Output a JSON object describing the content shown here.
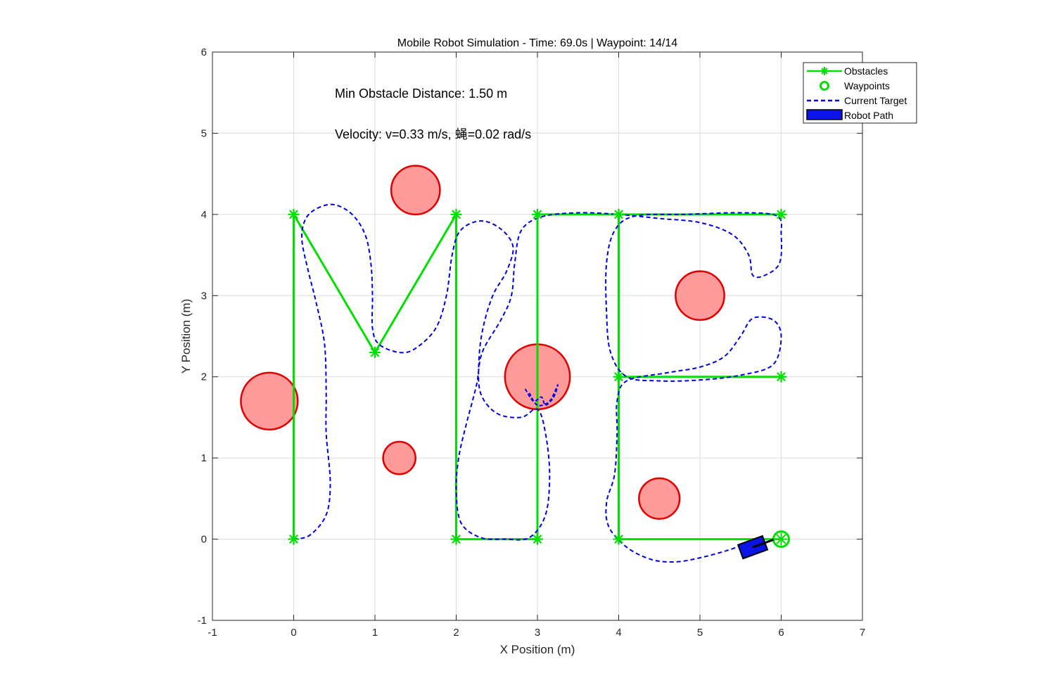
{
  "chart_data": {
    "type": "line",
    "title": "Mobile Robot Simulation - Time: 69.0s | Waypoint: 14/14",
    "xlabel": "X Position (m)",
    "ylabel": "Y Position (m)",
    "xlim": [
      -1,
      7
    ],
    "ylim": [
      -1,
      6
    ],
    "xticks": [
      "-1",
      "0",
      "1",
      "2",
      "3",
      "4",
      "5",
      "6",
      "7"
    ],
    "yticks": [
      "-1",
      "0",
      "1",
      "2",
      "3",
      "4",
      "5",
      "6"
    ],
    "grid": true,
    "legend_position": "top-right",
    "annotations": {
      "min_distance": "Min Obstacle Distance: 1.50 m",
      "velocity": "Velocity: v=0.33 m/s, 蝇=0.02 rad/s"
    },
    "legend": [
      {
        "label": "Obstacles",
        "style": "green-line-star"
      },
      {
        "label": "Waypoints",
        "style": "green-circle"
      },
      {
        "label": "Current Target",
        "style": "blue-dashed"
      },
      {
        "label": "Robot Path",
        "style": "blue-box"
      }
    ],
    "colors": {
      "waypoint_line": "#00e000",
      "path": "#0000e0",
      "obstacle_fill": "#ff9a9a",
      "obstacle_edge": "#e00000",
      "robot_fill": "#0a14e6"
    },
    "obstacles": [
      {
        "x": -0.3,
        "y": 1.7,
        "r": 0.35
      },
      {
        "x": 1.3,
        "y": 1.0,
        "r": 0.2
      },
      {
        "x": 1.5,
        "y": 4.3,
        "r": 0.3
      },
      {
        "x": 3.0,
        "y": 2.0,
        "r": 0.4
      },
      {
        "x": 5.0,
        "y": 3.0,
        "r": 0.3
      },
      {
        "x": 4.5,
        "y": 0.5,
        "r": 0.25
      }
    ],
    "waypoint_segments": [
      [
        [
          0,
          0
        ],
        [
          0,
          4
        ],
        [
          1,
          2.3
        ],
        [
          2,
          4
        ],
        [
          2,
          0
        ],
        [
          3,
          0
        ],
        [
          3,
          4
        ],
        [
          4,
          4
        ],
        [
          6,
          4
        ]
      ],
      [
        [
          4,
          4
        ],
        [
          4,
          2
        ],
        [
          6,
          2
        ]
      ],
      [
        [
          4,
          2
        ],
        [
          4,
          0
        ],
        [
          6,
          0
        ]
      ]
    ],
    "waypoint_stars": [
      [
        0,
        0
      ],
      [
        0,
        4
      ],
      [
        1,
        2.3
      ],
      [
        2,
        4
      ],
      [
        2,
        0
      ],
      [
        3,
        0
      ],
      [
        3,
        4
      ],
      [
        4,
        4
      ],
      [
        6,
        4
      ],
      [
        4,
        2
      ],
      [
        6,
        2
      ],
      [
        4,
        0
      ]
    ],
    "current_target": [
      6,
      0
    ],
    "path": [
      [
        0,
        0
      ],
      [
        0.2,
        0.05
      ],
      [
        0.4,
        0.3
      ],
      [
        0.45,
        0.7
      ],
      [
        0.4,
        1.3
      ],
      [
        0.4,
        1.8
      ],
      [
        0.38,
        2.4
      ],
      [
        0.28,
        2.9
      ],
      [
        0.18,
        3.3
      ],
      [
        0.1,
        3.7
      ],
      [
        0.15,
        3.95
      ],
      [
        0.3,
        4.08
      ],
      [
        0.5,
        4.12
      ],
      [
        0.72,
        4.0
      ],
      [
        0.88,
        3.75
      ],
      [
        0.95,
        3.4
      ],
      [
        0.97,
        3.0
      ],
      [
        0.97,
        2.6
      ],
      [
        1.05,
        2.4
      ],
      [
        1.3,
        2.3
      ],
      [
        1.5,
        2.35
      ],
      [
        1.75,
        2.6
      ],
      [
        1.88,
        3.0
      ],
      [
        1.95,
        3.5
      ],
      [
        2.05,
        3.8
      ],
      [
        2.3,
        3.92
      ],
      [
        2.55,
        3.82
      ],
      [
        2.7,
        3.6
      ],
      [
        2.62,
        3.3
      ],
      [
        2.45,
        3.0
      ],
      [
        2.33,
        2.6
      ],
      [
        2.28,
        2.2
      ],
      [
        2.3,
        1.8
      ],
      [
        2.5,
        1.55
      ],
      [
        2.8,
        1.5
      ],
      [
        3.0,
        1.6
      ],
      [
        3.1,
        1.3
      ],
      [
        3.15,
        0.8
      ],
      [
        3.1,
        0.3
      ],
      [
        2.9,
        0.02
      ],
      [
        2.6,
        0.0
      ],
      [
        2.3,
        0.02
      ],
      [
        2.06,
        0.2
      ],
      [
        2.0,
        0.6
      ],
      [
        2.03,
        1.0
      ],
      [
        2.12,
        1.4
      ],
      [
        2.25,
        1.9
      ],
      [
        2.32,
        2.3
      ],
      [
        2.55,
        2.7
      ],
      [
        2.68,
        3.0
      ],
      [
        2.72,
        3.4
      ],
      [
        2.8,
        3.8
      ],
      [
        3.05,
        3.97
      ],
      [
        3.5,
        4.02
      ],
      [
        4.0,
        4.0
      ],
      [
        4.5,
        3.95
      ],
      [
        5.0,
        3.9
      ],
      [
        5.4,
        3.75
      ],
      [
        5.6,
        3.5
      ],
      [
        5.65,
        3.25
      ],
      [
        5.8,
        3.25
      ],
      [
        5.98,
        3.4
      ],
      [
        6.0,
        3.75
      ],
      [
        5.95,
        3.98
      ],
      [
        5.5,
        4.02
      ],
      [
        4.8,
        4.0
      ],
      [
        4.2,
        3.98
      ],
      [
        3.95,
        3.8
      ],
      [
        3.85,
        3.4
      ],
      [
        3.85,
        2.8
      ],
      [
        3.9,
        2.3
      ],
      [
        4.1,
        2.0
      ],
      [
        4.5,
        1.95
      ],
      [
        5.0,
        1.96
      ],
      [
        5.5,
        2.02
      ],
      [
        5.9,
        2.15
      ],
      [
        6.0,
        2.5
      ],
      [
        5.9,
        2.7
      ],
      [
        5.65,
        2.72
      ],
      [
        5.5,
        2.5
      ],
      [
        5.3,
        2.25
      ],
      [
        5.0,
        2.12
      ],
      [
        4.6,
        2.05
      ],
      [
        4.1,
        1.95
      ],
      [
        3.98,
        1.7
      ],
      [
        3.98,
        1.3
      ],
      [
        3.95,
        0.8
      ],
      [
        3.85,
        0.45
      ],
      [
        3.88,
        0.15
      ],
      [
        4.1,
        -0.1
      ],
      [
        4.4,
        -0.25
      ],
      [
        4.7,
        -0.28
      ],
      [
        5.0,
        -0.23
      ],
      [
        5.3,
        -0.15
      ],
      [
        5.6,
        -0.05
      ]
    ],
    "path_tangle": [
      [
        2.85,
        1.85
      ],
      [
        2.95,
        1.7
      ],
      [
        3.05,
        1.75
      ],
      [
        3.1,
        1.65
      ],
      [
        3.2,
        1.75
      ],
      [
        3.25,
        1.9
      ],
      [
        3.15,
        1.7
      ],
      [
        3.0,
        1.65
      ],
      [
        2.9,
        1.8
      ]
    ],
    "robot": {
      "x": 5.65,
      "y": -0.1,
      "theta": 0.35,
      "length": 0.32,
      "width": 0.18
    }
  }
}
